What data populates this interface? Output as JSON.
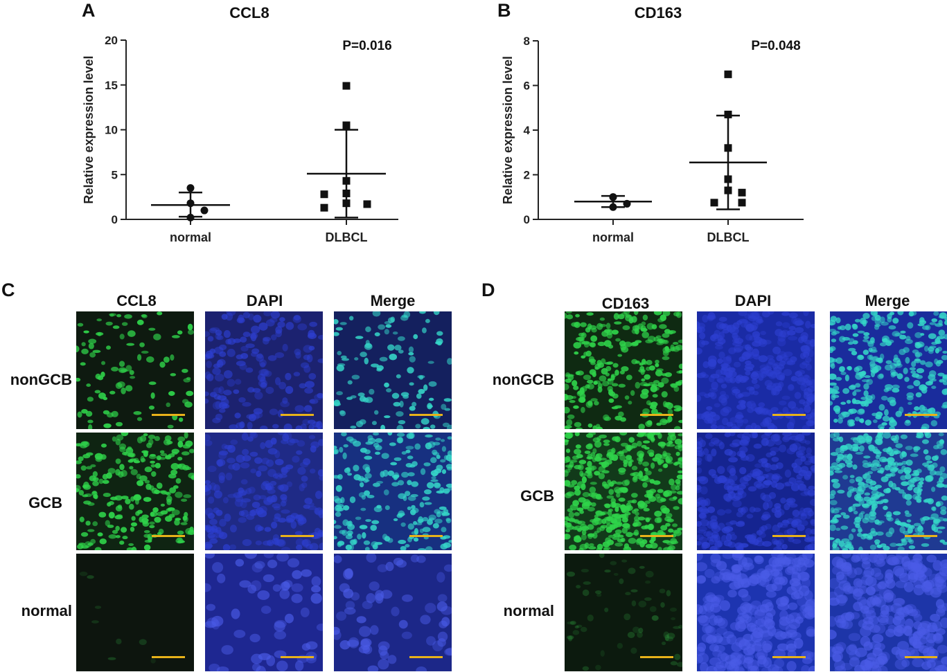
{
  "panels": {
    "a": {
      "label": "A",
      "title": "CCL8"
    },
    "b": {
      "label": "B",
      "title": "CD163"
    },
    "c": {
      "label": "C",
      "columns": [
        "CCL8",
        "DAPI",
        "Merge"
      ],
      "rows": [
        "nonGCB",
        "GCB",
        "normal"
      ]
    },
    "d": {
      "label": "D",
      "columns": [
        "CD163",
        "DAPI",
        "Merge"
      ],
      "rows": [
        "nonGCB",
        "GCB",
        "normal"
      ]
    }
  },
  "colors": {
    "scale_bar": "#e8b21a",
    "green_stain": "#2fd34a",
    "dapi_blue": "#2d3fd0",
    "merge_cyan": "#35d6c8"
  },
  "chart_data": [
    {
      "type": "scatter",
      "title": "CCL8",
      "ylabel": "Relative expression level",
      "xlabel": "",
      "categories": [
        "normal",
        "DLBCL"
      ],
      "ylim": [
        0,
        20
      ],
      "yticks": [
        0,
        5,
        10,
        15,
        20
      ],
      "annotation": "P=0.016",
      "series": [
        {
          "category": "normal",
          "marker": "circle",
          "values": [
            3.5,
            1.8,
            0.2,
            1.0
          ],
          "mean": 1.6,
          "sd_low": 0.3,
          "sd_high": 3.0
        },
        {
          "category": "DLBCL",
          "marker": "square",
          "values": [
            14.9,
            10.5,
            4.3,
            2.9,
            1.8,
            2.8,
            1.7,
            1.3
          ],
          "mean": 5.1,
          "sd_low": 0.2,
          "sd_high": 10.0
        }
      ]
    },
    {
      "type": "scatter",
      "title": "CD163",
      "ylabel": "Relative expression level",
      "xlabel": "",
      "categories": [
        "normal",
        "DLBCL"
      ],
      "ylim": [
        0,
        8
      ],
      "yticks": [
        0,
        2,
        4,
        6,
        8
      ],
      "annotation": "P=0.048",
      "series": [
        {
          "category": "normal",
          "marker": "circle",
          "values": [
            1.0,
            1.0,
            0.55,
            0.7
          ],
          "mean": 0.8,
          "sd_low": 0.55,
          "sd_high": 1.05
        },
        {
          "category": "DLBCL",
          "marker": "square",
          "values": [
            6.5,
            4.7,
            3.2,
            1.8,
            1.3,
            1.2,
            0.75,
            0.75
          ],
          "mean": 2.55,
          "sd_low": 0.45,
          "sd_high": 4.65
        }
      ]
    }
  ]
}
